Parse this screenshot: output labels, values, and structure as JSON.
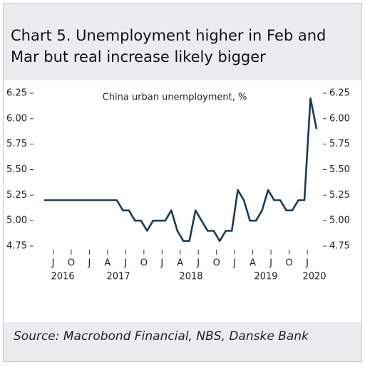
{
  "chart_data": {
    "type": "line",
    "title": "Chart 5. Unemployment  higher in Feb and Mar but real increase likely bigger",
    "source": "Source: Macrobond Financial, NBS, Danske Bank",
    "annotation": "China urban unemployment, %",
    "categories": [
      null,
      "J",
      null,
      null,
      "O",
      null,
      null,
      "J",
      null,
      null,
      "A",
      null,
      null,
      "J",
      null,
      null,
      "O",
      null,
      null,
      "J",
      null,
      null,
      "A",
      null,
      null,
      "J",
      null,
      null,
      "O",
      null,
      null,
      "J",
      null,
      null,
      "A",
      null,
      null,
      "J",
      null,
      null,
      "O",
      null,
      null,
      "J",
      null,
      null
    ],
    "year_labels": [
      "2016",
      "2017",
      "2018",
      "2019",
      "2020"
    ],
    "series": [
      {
        "name": "China urban unemployment, %",
        "color": "#1b3a5a",
        "values": [
          5.2,
          5.2,
          5.2,
          5.2,
          5.2,
          5.2,
          5.2,
          5.2,
          5.2,
          5.2,
          5.2,
          5.2,
          5.2,
          5.1,
          5.1,
          5.0,
          5.0,
          4.9,
          5.0,
          5.0,
          5.0,
          5.1,
          4.9,
          4.8,
          4.8,
          5.1,
          5.0,
          4.9,
          4.9,
          4.8,
          4.9,
          4.9,
          5.3,
          5.2,
          5.0,
          5.0,
          5.1,
          5.3,
          5.2,
          5.2,
          5.1,
          5.1,
          5.2,
          5.2,
          6.2,
          5.9
        ]
      }
    ],
    "ylim": [
      4.75,
      6.25
    ],
    "yticks": [
      6.25,
      {
        "value": 6,
        "label": "6.00"
      },
      5.75,
      {
        "value": 5.5,
        "label": "5.50"
      },
      5.25,
      {
        "value": 5,
        "label": "5.00"
      },
      4.75
    ]
  }
}
